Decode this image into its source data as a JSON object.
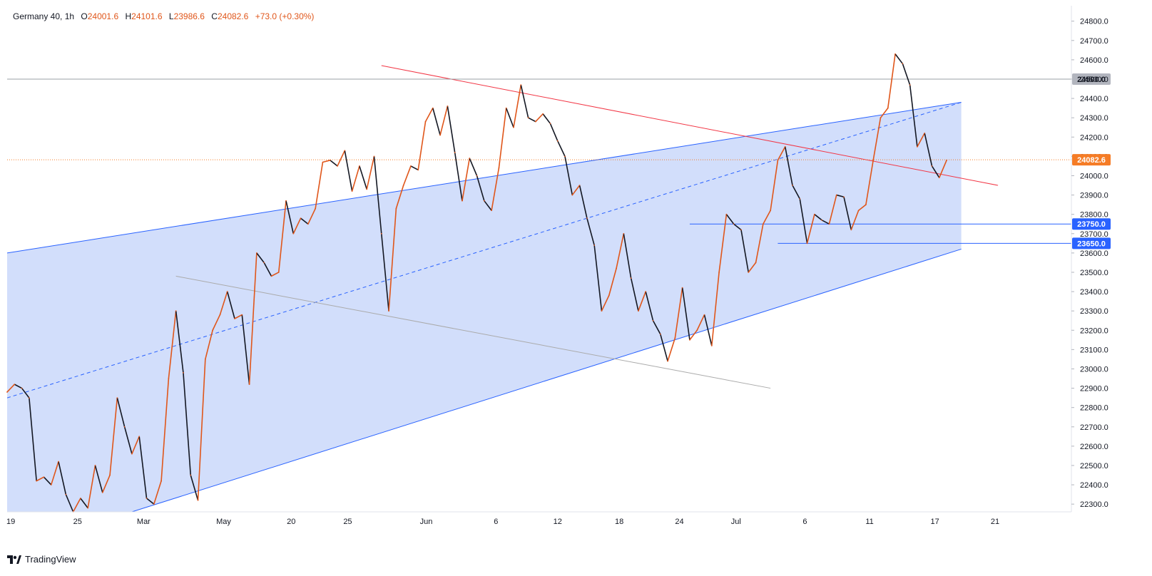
{
  "legend": {
    "symbol": "Germany 40, 1h",
    "open_label": "O",
    "open": "24001.6",
    "high_label": "H",
    "high": "24101.6",
    "low_label": "L",
    "low": "23986.6",
    "close_label": "C",
    "close": "24082.6",
    "change": "+73.0 (+0.30%)"
  },
  "brand": {
    "name": "TradingView",
    "icon": "tradingview-logo-icon"
  },
  "colors": {
    "channel_fill": "#d0dcfb",
    "channel_line": "#2962ff",
    "resistance_line": "#f23645",
    "support_old_line": "#aaaaaa",
    "level_line": "#2962ff",
    "price_badge": "#f57c26",
    "round_level": "#9aa0a6",
    "candle": "#e0561a",
    "candle_dark": "#131722"
  },
  "chart_data": {
    "type": "line",
    "title": "Germany 40, 1h",
    "ylim": [
      22260,
      24880
    ],
    "x_tick_labels": [
      "19",
      "25",
      "Mar",
      "May",
      "20",
      "25",
      "Jun",
      "6",
      "12",
      "18",
      "24",
      "Jul",
      "6",
      "11",
      "17",
      "21"
    ],
    "y_tick_labels": [
      "24800.0",
      "24700.0",
      "24600.0",
      "24500.0",
      "24400.0",
      "24300.0",
      "24200.0",
      "24100.0",
      "24000.0",
      "23900.0",
      "23800.0",
      "23700.0",
      "23600.0",
      "23500.0",
      "23400.0",
      "23300.0",
      "23200.0",
      "23100.0",
      "23000.0",
      "22900.0",
      "22800.0",
      "22700.0",
      "22600.0",
      "22500.0",
      "22400.0",
      "22300.0"
    ],
    "y_ticks": [
      24800,
      24700,
      24600,
      24500,
      24400,
      24300,
      24200,
      24100,
      24000,
      23900,
      23800,
      23700,
      23600,
      23500,
      23400,
      23300,
      23200,
      23100,
      23000,
      22900,
      22800,
      22700,
      22600,
      22500,
      22400,
      22300
    ],
    "series": [
      {
        "values": [
          22880,
          22920,
          22900,
          22850,
          22420,
          22440,
          22400,
          22520,
          22350,
          22260,
          22330,
          22280,
          22500,
          22360,
          22450,
          22850,
          22700,
          22560,
          22650,
          22330,
          22300,
          22420,
          22950,
          23300,
          22980,
          22450,
          22320,
          23050,
          23200,
          23280,
          23400,
          23260,
          23280,
          22920,
          23600,
          23550,
          23480,
          23500,
          23870,
          23700,
          23780,
          23750,
          23830,
          24070,
          24080,
          24050,
          24130,
          23920,
          24050,
          23930,
          24100,
          23700,
          23300,
          23830,
          23950,
          24050,
          24030,
          24280,
          24350,
          24210,
          24360,
          24120,
          23870,
          24090,
          24000,
          23870,
          23820,
          24040,
          24350,
          24250,
          24470,
          24300,
          24280,
          24320,
          24270,
          24180,
          24100,
          23900,
          23950,
          23780,
          23640,
          23300,
          23380,
          23520,
          23700,
          23470,
          23300,
          23400,
          23250,
          23180,
          23040,
          23160,
          23420,
          23150,
          23200,
          23280,
          23120,
          23500,
          23800,
          23750,
          23720,
          23500,
          23550,
          23750,
          23820,
          24080,
          24150,
          23950,
          23880,
          23650,
          23800,
          23770,
          23750,
          23900,
          23890,
          23720,
          23820,
          23850,
          24080,
          24300,
          24350,
          24630,
          24580,
          24470,
          24150,
          24220,
          24050,
          23990,
          24080
        ]
      }
    ],
    "annotations": {
      "channel_upper": [
        [
          0,
          23600
        ],
        [
          130,
          24380
        ]
      ],
      "channel_mid": [
        [
          0,
          22850
        ],
        [
          130,
          24380
        ]
      ],
      "channel_lower": [
        [
          17,
          22260
        ],
        [
          130,
          23620
        ]
      ],
      "resistance": [
        [
          51,
          24570
        ],
        [
          135,
          23950
        ]
      ],
      "old_support": [
        [
          23,
          23480
        ],
        [
          104,
          22900
        ]
      ],
      "channel_end_x": 130,
      "x_max": 145
    },
    "horizontal_levels": [
      {
        "value": 24500,
        "label": "24500.0",
        "kind": "round"
      },
      {
        "value": 23750,
        "label": "23750.0",
        "kind": "level",
        "from_x": 93
      },
      {
        "value": 23650,
        "label": "23650.0",
        "kind": "level",
        "from_x": 105
      }
    ],
    "last_price": {
      "value": 24082.6,
      "label": "24082.6"
    }
  }
}
